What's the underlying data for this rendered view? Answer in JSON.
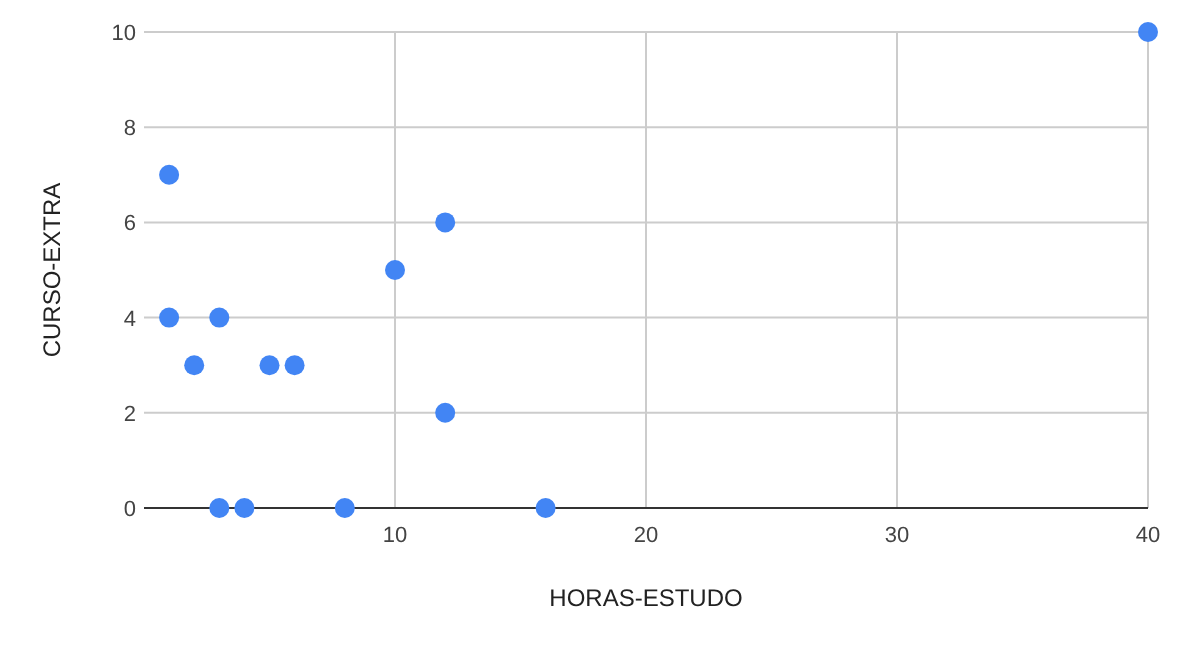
{
  "chart_data": {
    "type": "scatter",
    "xlabel": "HORAS-ESTUDO",
    "ylabel": "CURSO-EXTRA",
    "x": [
      1,
      1,
      2,
      3,
      3,
      4,
      5,
      6,
      8,
      10,
      12,
      12,
      16,
      40
    ],
    "series": [
      {
        "color": "#4285f4",
        "values": [
          7,
          4,
          3,
          4,
          0,
          0,
          3,
          3,
          0,
          5,
          6,
          2,
          0,
          10
        ]
      }
    ],
    "xlim": [
      0,
      40
    ],
    "xticks": [
      10,
      20,
      30,
      40
    ],
    "ylim": [
      0,
      10
    ],
    "yticks": [
      0,
      2,
      4,
      6,
      8,
      10
    ],
    "grid": true,
    "marker": "circle"
  }
}
